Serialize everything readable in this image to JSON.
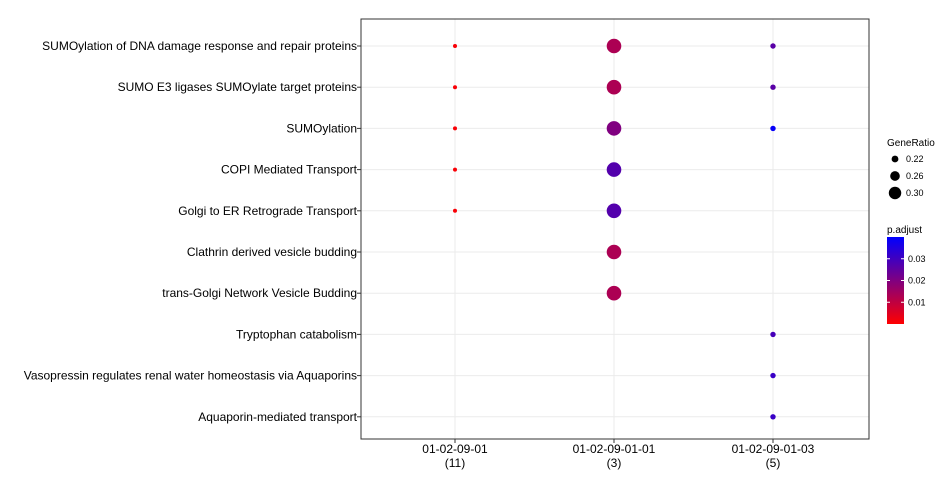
{
  "chart_data": {
    "type": "scatter",
    "categories_y": [
      "SUMOylation of DNA damage response and repair proteins",
      "SUMO E3 ligases SUMOylate target proteins",
      "SUMOylation",
      "COPI Mediated Transport",
      "Golgi to ER Retrograde Transport",
      "Clathrin derived vesicle budding",
      "trans-Golgi Network Vesicle Budding",
      "Tryptophan catabolism",
      "Vasopressin regulates renal water homeostasis via Aquaporins",
      "Aquaporin-mediated transport"
    ],
    "categories_x": [
      {
        "label": "01-02-09-01",
        "count": "(11)"
      },
      {
        "label": "01-02-09-01-01",
        "count": "(3)"
      },
      {
        "label": "01-02-09-01-03",
        "count": "(5)"
      }
    ],
    "points": [
      {
        "x": 0,
        "y": 0,
        "gene_ratio": 0.18,
        "p_adjust": 0.001
      },
      {
        "x": 1,
        "y": 0,
        "gene_ratio": 0.33,
        "p_adjust": 0.013
      },
      {
        "x": 2,
        "y": 0,
        "gene_ratio": 0.2,
        "p_adjust": 0.026
      },
      {
        "x": 0,
        "y": 1,
        "gene_ratio": 0.18,
        "p_adjust": 0.001
      },
      {
        "x": 1,
        "y": 1,
        "gene_ratio": 0.33,
        "p_adjust": 0.013
      },
      {
        "x": 2,
        "y": 1,
        "gene_ratio": 0.2,
        "p_adjust": 0.026
      },
      {
        "x": 0,
        "y": 2,
        "gene_ratio": 0.18,
        "p_adjust": 0.001
      },
      {
        "x": 1,
        "y": 2,
        "gene_ratio": 0.33,
        "p_adjust": 0.02
      },
      {
        "x": 2,
        "y": 2,
        "gene_ratio": 0.2,
        "p_adjust": 0.039
      },
      {
        "x": 0,
        "y": 3,
        "gene_ratio": 0.18,
        "p_adjust": 0.001
      },
      {
        "x": 1,
        "y": 3,
        "gene_ratio": 0.33,
        "p_adjust": 0.027
      },
      {
        "x": 0,
        "y": 4,
        "gene_ratio": 0.18,
        "p_adjust": 0.001
      },
      {
        "x": 1,
        "y": 4,
        "gene_ratio": 0.33,
        "p_adjust": 0.027
      },
      {
        "x": 1,
        "y": 5,
        "gene_ratio": 0.33,
        "p_adjust": 0.013
      },
      {
        "x": 1,
        "y": 6,
        "gene_ratio": 0.33,
        "p_adjust": 0.013
      },
      {
        "x": 2,
        "y": 7,
        "gene_ratio": 0.2,
        "p_adjust": 0.029
      },
      {
        "x": 2,
        "y": 8,
        "gene_ratio": 0.2,
        "p_adjust": 0.031
      },
      {
        "x": 2,
        "y": 9,
        "gene_ratio": 0.2,
        "p_adjust": 0.031
      }
    ],
    "size_legend": {
      "title": "GeneRatio",
      "values": [
        0.22,
        0.26,
        0.3
      ],
      "labels": [
        "0.22",
        "0.26",
        "0.30"
      ]
    },
    "color_legend": {
      "title": "p.adjust",
      "range": [
        0.0,
        0.04
      ],
      "ticks": [
        0.01,
        0.02,
        0.03
      ],
      "tick_labels": [
        "0.01",
        "0.02",
        "0.03"
      ],
      "low_color": "#ff0000",
      "high_color": "#0000ff"
    },
    "grid": true,
    "panel_border": "#333333",
    "grid_color": "#ebebeb"
  }
}
